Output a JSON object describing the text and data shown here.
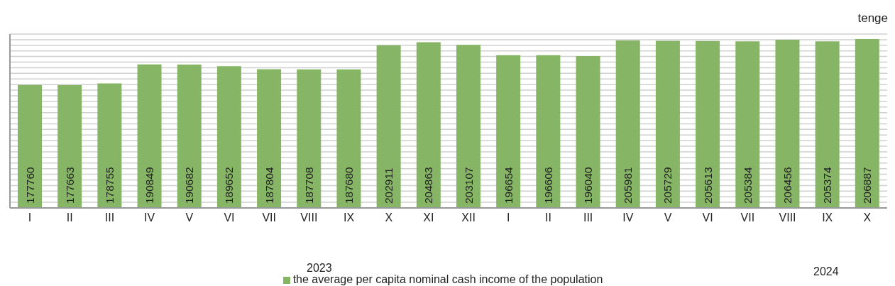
{
  "chart_data": {
    "type": "bar",
    "ylabel": "tenge",
    "categories": [
      "I",
      "II",
      "III",
      "IV",
      "V",
      "VI",
      "VII",
      "VIII",
      "IX",
      "X",
      "XI",
      "XII",
      "I",
      "II",
      "III",
      "IV",
      "V",
      "VI",
      "VII",
      "VIII",
      "IX",
      "X"
    ],
    "series": [
      {
        "name": "the average per capita nominal cash income of the population",
        "color": "#86b665",
        "values": [
          177760,
          177663,
          178755,
          190849,
          190682,
          189652,
          187804,
          187708,
          187680,
          202911,
          204863,
          203107,
          196654,
          196606,
          196040,
          205981,
          205729,
          205613,
          205384,
          206456,
          205374,
          206887
        ]
      }
    ],
    "ylim": [
      100000,
      210000
    ],
    "tick_labels": "x",
    "grid": "y",
    "data_labels": true,
    "legend": "bottom",
    "annotations": [
      "2023",
      "2024"
    ]
  }
}
